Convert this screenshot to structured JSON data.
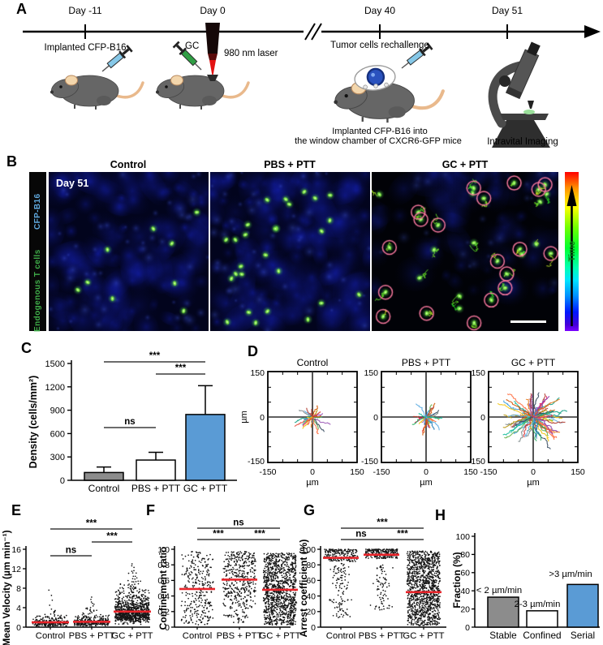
{
  "panelA": {
    "label": "A",
    "days": [
      {
        "label": "Day -11"
      },
      {
        "label": "Day 0"
      },
      {
        "label": "Day 40"
      },
      {
        "label": "Day 51"
      }
    ],
    "texts": {
      "implanted": "Implanted CFP-B16",
      "gc": "GC",
      "laser": "980 nm laser",
      "rechallenge": "Tumor cells rechallenge",
      "window_line1": "Implanted CFP-B16 into",
      "window_line2": "the window chamber of CXCR6-GFP mice",
      "imaging": "Intravital Imaging"
    }
  },
  "panelB": {
    "label": "B",
    "columns": [
      "Control",
      "PBS + PTT",
      "GC + PTT"
    ],
    "day_tag": "Day 51",
    "side_labels": [
      {
        "text": "CFP-B16",
        "color": "#5FA8DC"
      },
      {
        "text": "Endogenous T cells",
        "color": "#3FAE49"
      }
    ],
    "colorbar_label": "Time",
    "colorbar_label_color": "#0B7A12"
  },
  "panelC": {
    "label": "C"
  },
  "panelD": {
    "label": "D"
  },
  "panelE": {
    "label": "E"
  },
  "panelF": {
    "label": "F"
  },
  "panelG": {
    "label": "G"
  },
  "panelH": {
    "label": "H"
  },
  "colors": {
    "bar_blue": "#5A9BD5",
    "bar_gray": "#8C8C8C",
    "bar_white": "#FFFFFF",
    "median_red": "#E8242A",
    "sig_line": "#3C3C3C",
    "track_circle_pink": "#F4769B"
  },
  "chart_data": [
    {
      "id": "C",
      "type": "bar",
      "ylabel": "Density (cells/mm²)",
      "categories": [
        "Control",
        "PBS + PTT",
        "GC + PTT"
      ],
      "values": [
        100,
        260,
        845
      ],
      "errors_up": [
        70,
        100,
        370
      ],
      "bar_colors": [
        "#8C8C8C",
        "#FFFFFF",
        "#5A9BD5"
      ],
      "yticks": [
        0,
        300,
        600,
        900,
        1200,
        1500
      ],
      "ytick_labels": [
        "0",
        "300",
        "600",
        "900",
        "1200",
        "1500"
      ],
      "ylim": [
        0,
        1500
      ],
      "significance": [
        {
          "from": 0,
          "to": 1,
          "label": "ns"
        },
        {
          "from": 1,
          "to": 2,
          "label": "***"
        },
        {
          "from": 0,
          "to": 2,
          "label": "***"
        }
      ]
    },
    {
      "id": "D",
      "type": "track-plot-set",
      "subplots": [
        {
          "title": "Control",
          "n_tracks": 25,
          "max_radius_um": 60
        },
        {
          "title": "PBS + PTT",
          "n_tracks": 32,
          "max_radius_um": 58
        },
        {
          "title": "GC + PTT",
          "n_tracks": 78,
          "max_radius_um": 115
        }
      ],
      "xticks": [
        -150,
        0,
        150
      ],
      "yticks": [
        -150,
        0,
        150
      ],
      "tick_labels": [
        "-150",
        "0",
        "150"
      ],
      "xlabel": "µm",
      "ylabel": "µm",
      "xlim": [
        -150,
        150
      ],
      "ylim": [
        -150,
        150
      ]
    },
    {
      "id": "E",
      "type": "scatter-beeswarm",
      "ylabel": "Mean Velocity (µm min⁻¹)",
      "categories": [
        "Control",
        "PBS + PTT",
        "GC + PTT"
      ],
      "yticks": [
        0,
        4,
        8,
        12,
        16
      ],
      "ytick_labels": [
        "0",
        "4",
        "8",
        "12",
        "16"
      ],
      "ylim": [
        0,
        16
      ],
      "medians": [
        1.0,
        1.1,
        3.2
      ],
      "n_points": [
        260,
        300,
        950
      ],
      "value_max": [
        8.5,
        6.8,
        13.5
      ],
      "significance": [
        {
          "from": 0,
          "to": 1,
          "label": "ns"
        },
        {
          "from": 1,
          "to": 2,
          "label": "***"
        },
        {
          "from": 0,
          "to": 2,
          "label": "***"
        }
      ]
    },
    {
      "id": "F",
      "type": "scatter-beeswarm",
      "ylabel": "Confinement ratio",
      "categories": [
        "Control",
        "PBS + PTT",
        "GC + PTT"
      ],
      "yticks": [
        0,
        0.2,
        0.4,
        0.6,
        0.8,
        1.0
      ],
      "ytick_labels": [
        "0",
        "0.2",
        "0.4",
        "0.6",
        "0.8",
        "1.0"
      ],
      "ylim": [
        0,
        1.0
      ],
      "medians": [
        0.49,
        0.61,
        0.48
      ],
      "n_points": [
        300,
        450,
        1150
      ],
      "value_max": [
        0.97,
        0.97,
        0.95
      ],
      "significance": [
        {
          "from": 0,
          "to": 1,
          "label": "***"
        },
        {
          "from": 1,
          "to": 2,
          "label": "***"
        },
        {
          "from": 0,
          "to": 2,
          "label": "ns"
        }
      ]
    },
    {
      "id": "G",
      "type": "scatter-beeswarm",
      "ylabel": "Arrest coefficient (%)",
      "categories": [
        "Control",
        "PBS + PTT",
        "GC + PTT"
      ],
      "yticks": [
        0,
        20,
        40,
        60,
        80,
        100
      ],
      "ytick_labels": [
        "0",
        "20",
        "40",
        "60",
        "80",
        "100"
      ],
      "ylim": [
        0,
        100
      ],
      "medians": [
        89,
        93,
        45
      ],
      "n_points": [
        300,
        330,
        1250
      ],
      "value_max": [
        100,
        100,
        100
      ],
      "significance": [
        {
          "from": 0,
          "to": 1,
          "label": "ns"
        },
        {
          "from": 1,
          "to": 2,
          "label": "***"
        },
        {
          "from": 0,
          "to": 2,
          "label": "***"
        }
      ]
    },
    {
      "id": "H",
      "type": "bar",
      "ylabel": "Fraction (%)",
      "categories": [
        "Stable",
        "Confined",
        "Serial"
      ],
      "values": [
        33,
        18,
        47
      ],
      "annotations": [
        "< 2 µm/min",
        "2-3 µm/min",
        ">3 µm/min"
      ],
      "bar_colors": [
        "#8C8C8C",
        "#FFFFFF",
        "#5A9BD5"
      ],
      "yticks": [
        0,
        20,
        40,
        60,
        80,
        100
      ],
      "ytick_labels": [
        "0",
        "20",
        "40",
        "60",
        "80",
        "100"
      ],
      "ylim": [
        0,
        100
      ]
    }
  ]
}
